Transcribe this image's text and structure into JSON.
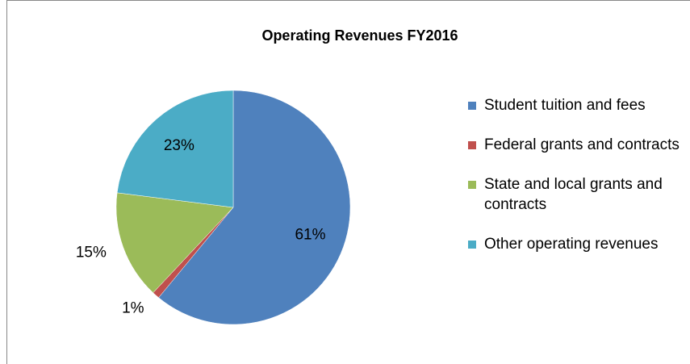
{
  "chart_data": {
    "type": "pie",
    "title": "Operating Revenues  FY2016",
    "categories": [
      "Student tuition and fees",
      "Federal grants and contracts",
      "State and local grants and contracts",
      "Other operating revenues"
    ],
    "values": [
      61,
      1,
      15,
      23
    ],
    "value_labels": [
      "61%",
      "1%",
      "15%",
      "23%"
    ],
    "colors": [
      "#4f81bd",
      "#c0504d",
      "#9bbb59",
      "#4bacc6"
    ],
    "legend": "right"
  }
}
